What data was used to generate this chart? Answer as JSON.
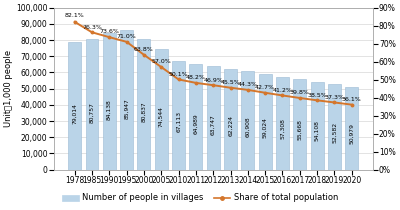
{
  "years": [
    "1978",
    "1985",
    "1990",
    "1995",
    "2000",
    "2005",
    "2010",
    "2011",
    "2012",
    "2013",
    "2014",
    "2015",
    "2016",
    "2017",
    "2018",
    "2019",
    "2020"
  ],
  "bar_values": [
    79014,
    80757,
    84138,
    85947,
    80837,
    74544,
    67113,
    64989,
    63747,
    62224,
    60908,
    59024,
    57308,
    55668,
    54108,
    52582,
    50979
  ],
  "line_values": [
    82.1,
    76.3,
    73.6,
    71.0,
    63.8,
    57.0,
    50.1,
    48.2,
    46.9,
    45.5,
    44.3,
    42.7,
    41.2,
    39.8,
    38.5,
    37.3,
    36.1
  ],
  "bar_color": "#bad4e8",
  "bar_edge_color": "#9bbad4",
  "line_color": "#d4762c",
  "ylabel_left": "Unit：1,000 people",
  "ylim_left": [
    0,
    100000
  ],
  "ylim_right": [
    0,
    90
  ],
  "yticks_left": [
    0,
    10000,
    20000,
    30000,
    40000,
    50000,
    60000,
    70000,
    80000,
    90000,
    100000
  ],
  "yticks_right": [
    0,
    10,
    20,
    30,
    40,
    50,
    60,
    70,
    80,
    90
  ],
  "legend_bar": "Number of people in villages",
  "legend_line": "Share of total population",
  "background_color": "#ffffff",
  "grid_color": "#d8d8d8",
  "fontsize_ticks": 5.5,
  "fontsize_bar_labels": 4.3,
  "fontsize_line_labels": 4.5,
  "fontsize_ylabel": 6.0,
  "fontsize_legend": 6.0
}
